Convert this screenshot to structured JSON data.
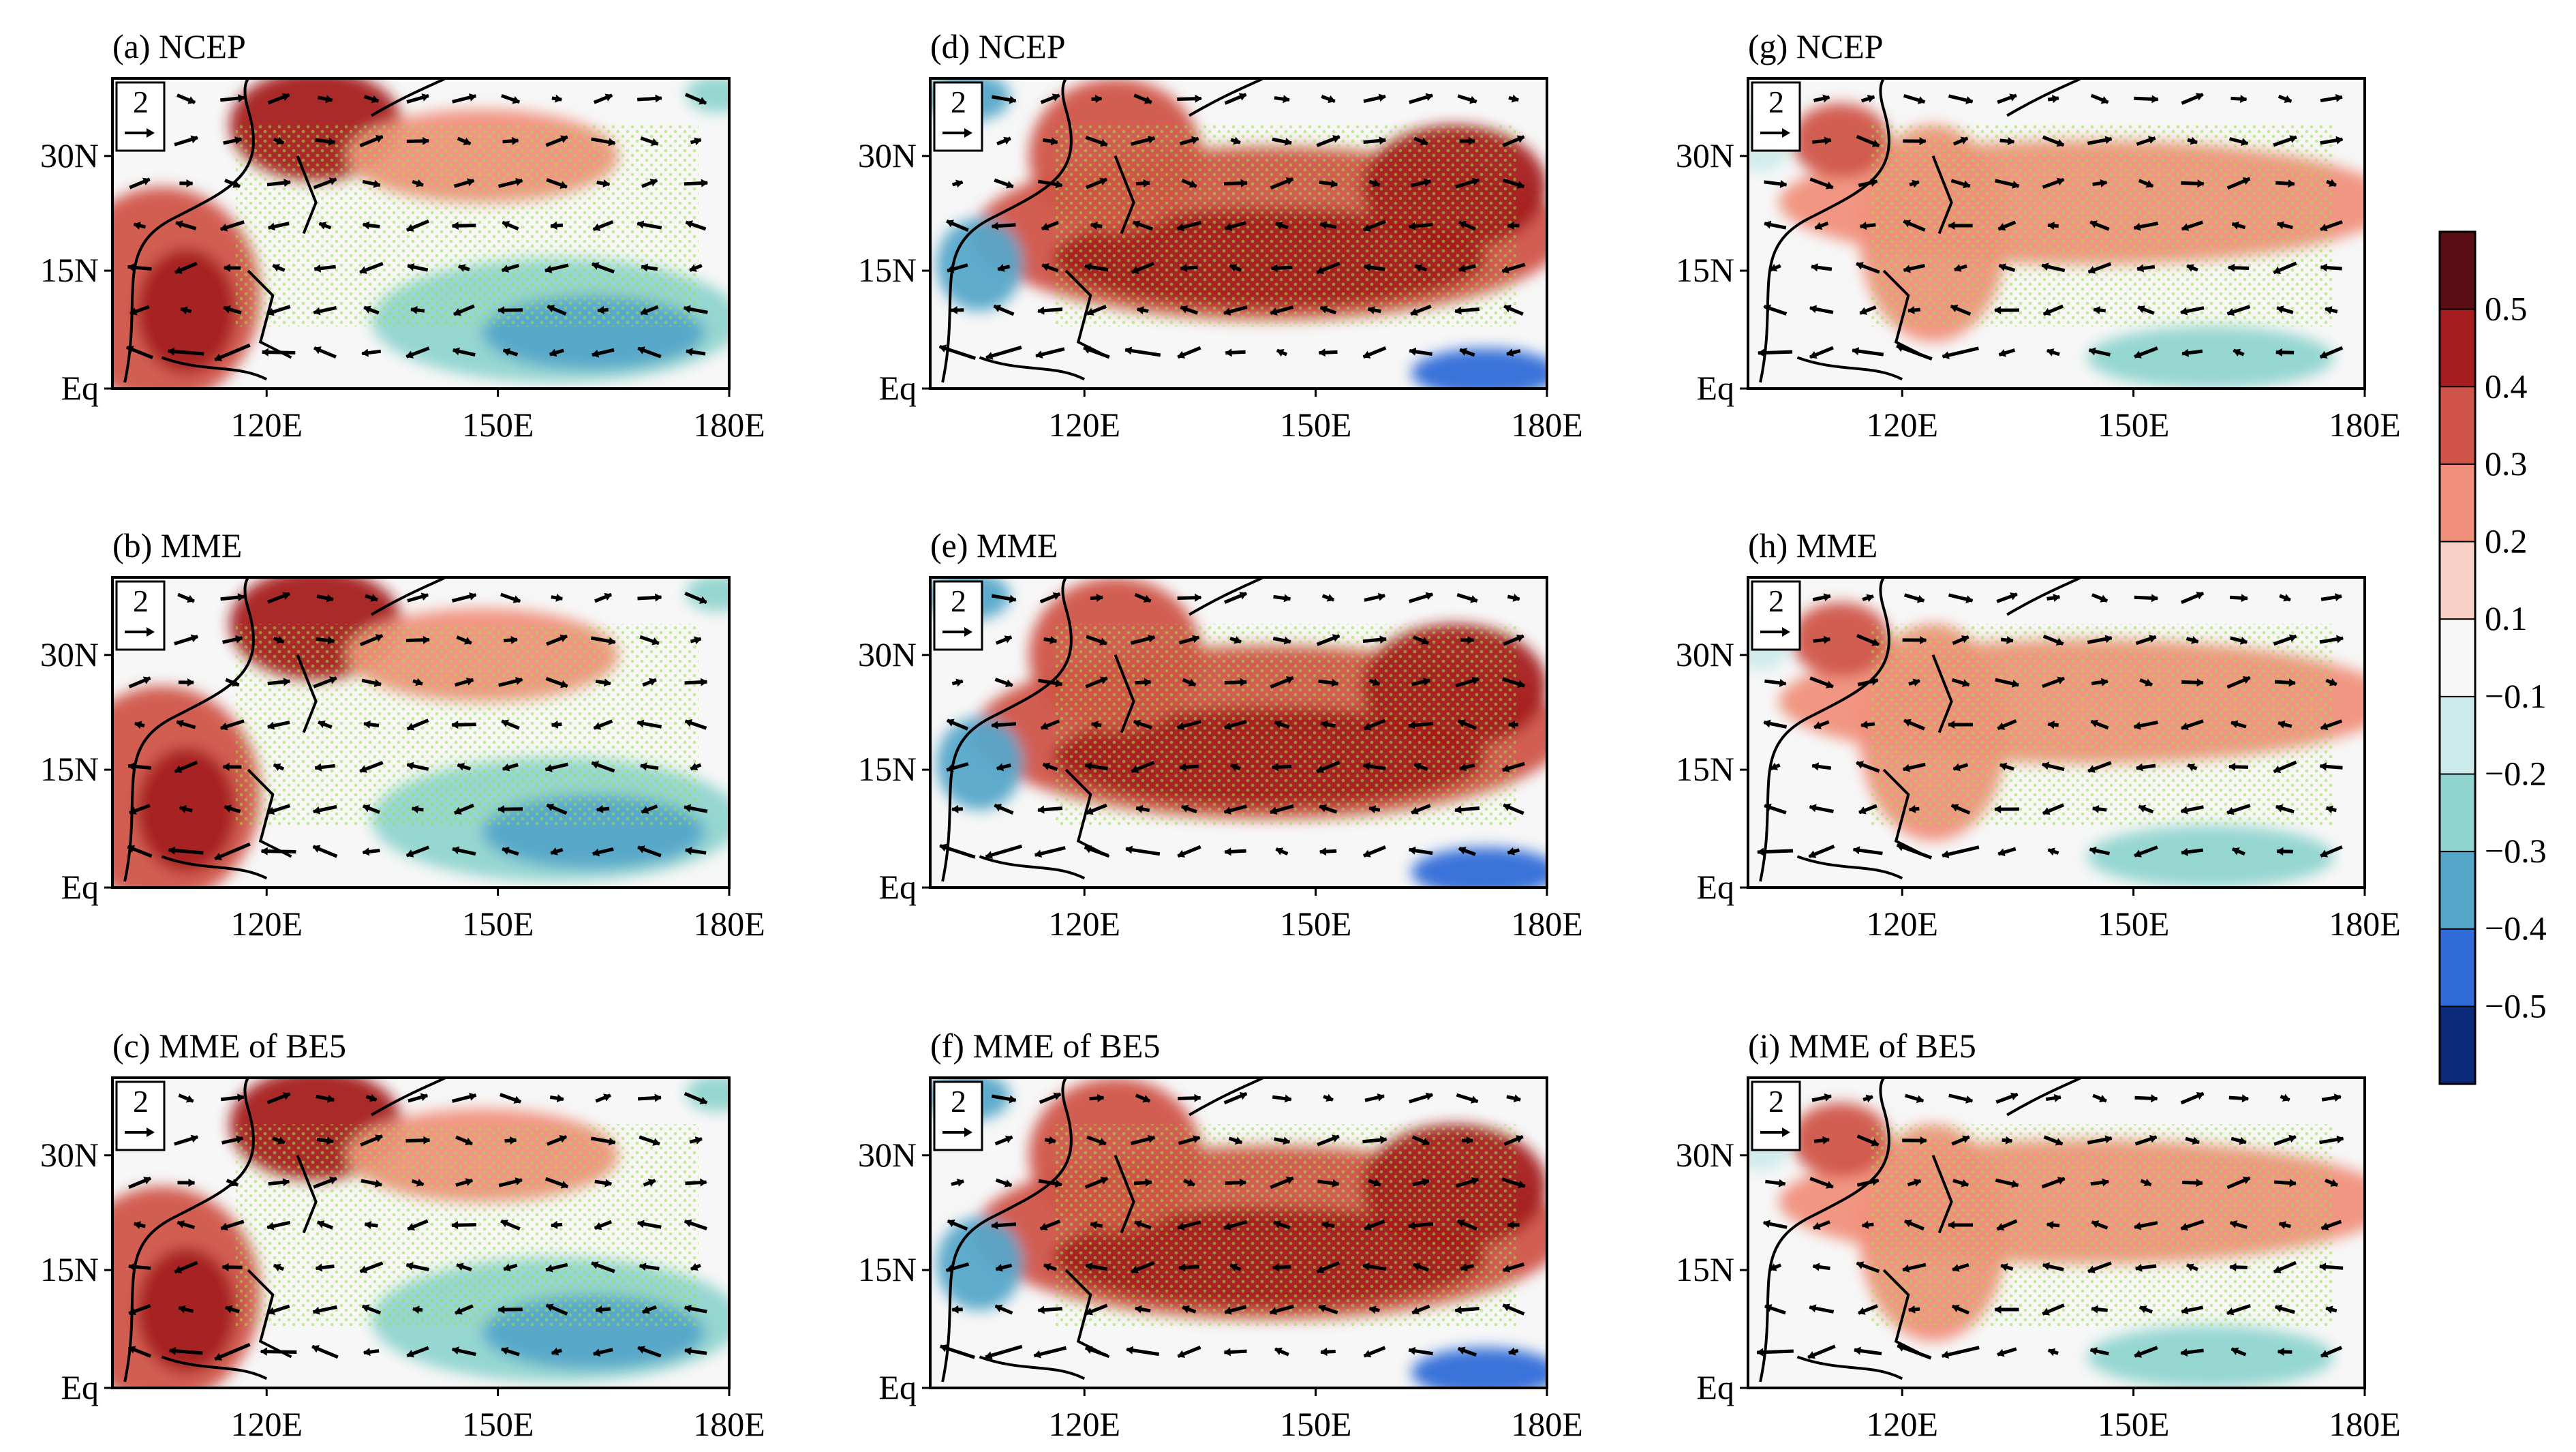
{
  "figure": {
    "panels": [
      {
        "id": "a",
        "title": "(a) NCEP"
      },
      {
        "id": "d",
        "title": "(d) NCEP"
      },
      {
        "id": "g",
        "title": "(g) NCEP"
      },
      {
        "id": "b",
        "title": "(b) MME"
      },
      {
        "id": "e",
        "title": "(e) MME"
      },
      {
        "id": "h",
        "title": "(h) MME"
      },
      {
        "id": "c",
        "title": "(c) MME of BE5"
      },
      {
        "id": "f",
        "title": "(f) MME of BE5"
      },
      {
        "id": "i",
        "title": "(i) MME of BE5"
      }
    ],
    "lat_ticks": [
      "30N",
      "15N",
      "Eq"
    ],
    "lon_ticks": [
      "120E",
      "150E",
      "180E"
    ],
    "reference_vector": "2",
    "colorbar": {
      "labels": [
        "0.5",
        "0.4",
        "0.3",
        "0.2",
        "0.1",
        "−0.1",
        "−0.2",
        "−0.3",
        "−0.4",
        "−0.5"
      ],
      "colors": [
        "#5a0d12",
        "#a51d1f",
        "#d05448",
        "#f0907c",
        "#f9d0c6",
        "#f7f7f7",
        "#cdeaea",
        "#8fd4cf",
        "#55a6c9",
        "#2f6cd8",
        "#0c2a7a"
      ]
    },
    "stipple_color": "#9be04a",
    "vector_color": "#000000"
  }
}
